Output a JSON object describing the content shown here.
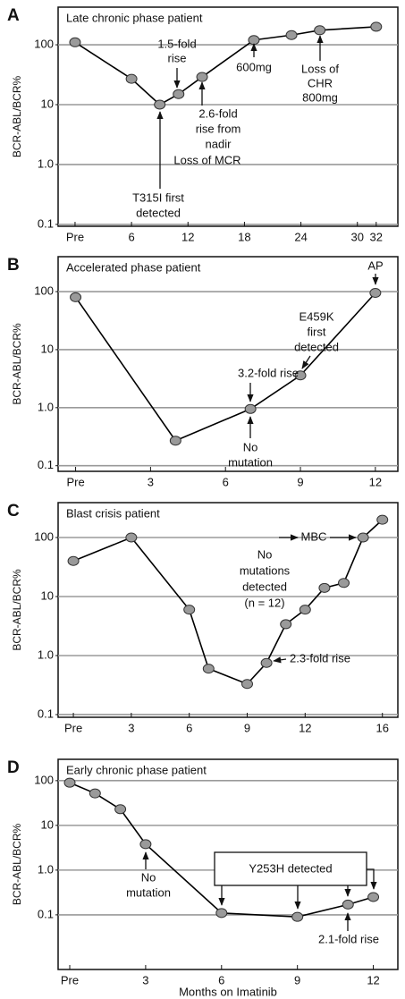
{
  "chart_data": [
    {
      "type": "line",
      "panel_label": "A",
      "title": "Late chronic phase patient",
      "ylabel": "BCR-ABL/BCR%",
      "x": [
        0,
        6,
        9,
        11,
        13.5,
        19,
        23,
        26,
        32
      ],
      "values": [
        110,
        27,
        10,
        15,
        29,
        120,
        145,
        175,
        200
      ],
      "color": "#000000",
      "marker_color": "#9a9a9a",
      "xlim": [
        -1.8,
        34.3
      ],
      "xticks": [
        {
          "value": 0,
          "label": "Pre"
        },
        6,
        12,
        18,
        24,
        30,
        32
      ],
      "ylim": [
        0.093,
        425
      ],
      "yticks": [
        0.1,
        {
          "value": 1,
          "label": "1.0"
        },
        10,
        100
      ],
      "log_scale": true,
      "grid": true,
      "annotations": [
        {
          "text": [
            "1.5-fold",
            "rise"
          ]
        },
        {
          "text": [
            "2.6-fold",
            "rise from",
            "nadir",
            "Loss of MCR"
          ]
        },
        {
          "text": [
            "T315I first",
            "detected"
          ]
        },
        {
          "text": [
            "600mg"
          ]
        },
        {
          "text": [
            "Loss of",
            "CHR",
            "800mg"
          ]
        }
      ]
    },
    {
      "type": "line",
      "panel_label": "B",
      "title": "Accelerated phase patient",
      "ylabel": "BCR-ABL/BCR%",
      "x": [
        0,
        4,
        7,
        9,
        12
      ],
      "values": [
        80,
        0.27,
        0.95,
        3.6,
        95
      ],
      "color": "#000000",
      "marker_color": "#9a9a9a",
      "xlim": [
        -0.7,
        12.9
      ],
      "xticks": [
        {
          "value": 0,
          "label": "Pre"
        },
        3,
        6,
        9,
        12
      ],
      "ylim": [
        0.08,
        400
      ],
      "yticks": [
        0.1,
        {
          "value": 1,
          "label": "1.0"
        },
        10,
        100
      ],
      "log_scale": true,
      "grid": true,
      "annotations": [
        {
          "text": [
            "AP"
          ]
        },
        {
          "text": [
            "E459K",
            "first",
            "detected"
          ]
        },
        {
          "text": [
            "3.2-fold rise"
          ]
        },
        {
          "text": [
            "No",
            "mutation"
          ]
        }
      ]
    },
    {
      "type": "line",
      "panel_label": "C",
      "title": "Blast crisis patient",
      "ylabel": "BCR-ABL/BCR%",
      "x": [
        0,
        3,
        6,
        7,
        9,
        10,
        11,
        12,
        13,
        14,
        15,
        16
      ],
      "values": [
        40,
        100,
        6,
        0.6,
        0.33,
        0.75,
        3.4,
        6,
        14,
        17,
        100,
        200
      ],
      "color": "#000000",
      "marker_color": "#9a9a9a",
      "xlim": [
        -0.79,
        16.8
      ],
      "xticks": [
        {
          "value": 0,
          "label": "Pre"
        },
        3,
        6,
        9,
        12,
        16
      ],
      "ylim": [
        0.09,
        390
      ],
      "yticks": [
        0.1,
        {
          "value": 1,
          "label": "1.0"
        },
        10,
        100
      ],
      "log_scale": true,
      "grid": true,
      "annotations": [
        {
          "text": [
            "No",
            "mutations",
            "detected",
            "(n = 12)"
          ]
        },
        {
          "text": [
            "MBC"
          ]
        },
        {
          "text": [
            "2.3-fold rise"
          ]
        }
      ]
    },
    {
      "type": "line",
      "panel_label": "D",
      "title": "Early chronic phase patient",
      "ylabel": "BCR-ABL/BCR%",
      "xlabel": "Months on Imatinib",
      "x": [
        0,
        1,
        2,
        3,
        6,
        9,
        11,
        12
      ],
      "values": [
        90,
        52,
        23,
        3.8,
        0.11,
        0.09,
        0.17,
        0.25
      ],
      "color": "#000000",
      "marker_color": "#9a9a9a",
      "xlim": [
        -0.46,
        12.97
      ],
      "xticks": [
        {
          "value": 0,
          "label": "Pre"
        },
        3,
        6,
        9,
        12
      ],
      "ylim": [
        0.006,
        300
      ],
      "yticks": [
        0.1,
        {
          "value": 1,
          "label": "1.0"
        },
        10,
        100
      ],
      "log_scale": true,
      "grid": true,
      "annotations": [
        {
          "text": [
            "No",
            "mutation"
          ]
        },
        {
          "text": [
            "Y253H detected"
          ]
        },
        {
          "text": [
            "2.1-fold rise"
          ]
        }
      ]
    }
  ]
}
